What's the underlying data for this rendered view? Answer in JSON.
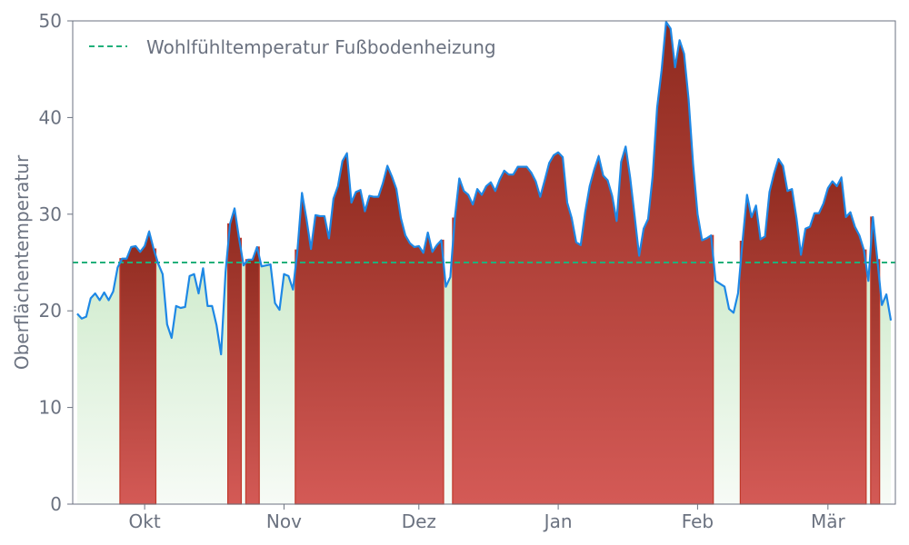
{
  "chart_data": {
    "type": "area",
    "title": "",
    "xlabel": "",
    "ylabel": "Oberflächentemperatur",
    "ylim": [
      0,
      50
    ],
    "yticks": [
      0,
      10,
      20,
      30,
      40,
      50
    ],
    "x_start": "2023-09-15",
    "x_end": "2024-03-16",
    "xticks": [
      {
        "label": "Okt",
        "date": "2023-10-01"
      },
      {
        "label": "Nov",
        "date": "2023-11-01"
      },
      {
        "label": "Dez",
        "date": "2023-12-01"
      },
      {
        "label": "Jan",
        "date": "2024-01-01"
      },
      {
        "label": "Feb",
        "date": "2024-02-01"
      },
      {
        "label": "Mär",
        "date": "2024-03-01"
      }
    ],
    "threshold": {
      "name": "Wohlfühltemperatur Fußbodenheizung",
      "value": 25
    },
    "legend_position": "top-left",
    "colors": {
      "line": "#1e88e5",
      "threshold": "#20b07a",
      "above_top": "#8e2a1e",
      "above_bottom": "#d45a56",
      "below_top": "#a8dca4",
      "below_bottom": "#f7fbf6",
      "axis": "#6b7280"
    },
    "series": [
      {
        "name": "Oberflächentemperatur",
        "points": [
          [
            "2023-09-16",
            19.7
          ],
          [
            "2023-09-17",
            19.2
          ],
          [
            "2023-09-18",
            19.4
          ],
          [
            "2023-09-19",
            21.3
          ],
          [
            "2023-09-20",
            21.8
          ],
          [
            "2023-09-21",
            21.1
          ],
          [
            "2023-09-22",
            21.9
          ],
          [
            "2023-09-23",
            21.1
          ],
          [
            "2023-09-24",
            22.0
          ],
          [
            "2023-09-25",
            24.5
          ],
          [
            "2023-09-26",
            25.4
          ],
          [
            "2023-09-27",
            25.4
          ],
          [
            "2023-09-28",
            26.6
          ],
          [
            "2023-09-29",
            26.7
          ],
          [
            "2023-09-30",
            26.1
          ],
          [
            "2023-10-01",
            26.7
          ],
          [
            "2023-10-02",
            28.2
          ],
          [
            "2023-10-03",
            26.4
          ],
          [
            "2023-10-04",
            24.9
          ],
          [
            "2023-10-05",
            23.8
          ],
          [
            "2023-10-06",
            18.6
          ],
          [
            "2023-10-07",
            17.2
          ],
          [
            "2023-10-08",
            20.5
          ],
          [
            "2023-10-09",
            20.3
          ],
          [
            "2023-10-10",
            20.4
          ],
          [
            "2023-10-11",
            23.6
          ],
          [
            "2023-10-12",
            23.8
          ],
          [
            "2023-10-13",
            21.8
          ],
          [
            "2023-10-14",
            24.4
          ],
          [
            "2023-10-15",
            20.5
          ],
          [
            "2023-10-16",
            20.5
          ],
          [
            "2023-10-17",
            18.5
          ],
          [
            "2023-10-18",
            15.5
          ],
          [
            "2023-10-19",
            24.0
          ],
          [
            "2023-10-20",
            29.0
          ],
          [
            "2023-10-21",
            30.6
          ],
          [
            "2023-10-22",
            27.5
          ],
          [
            "2023-10-23",
            24.7
          ],
          [
            "2023-10-24",
            25.3
          ],
          [
            "2023-10-25",
            25.3
          ],
          [
            "2023-10-26",
            26.6
          ],
          [
            "2023-10-27",
            24.6
          ],
          [
            "2023-10-28",
            24.7
          ],
          [
            "2023-10-29",
            24.8
          ],
          [
            "2023-10-30",
            20.8
          ],
          [
            "2023-10-31",
            20.1
          ],
          [
            "2023-11-01",
            23.8
          ],
          [
            "2023-11-02",
            23.6
          ],
          [
            "2023-11-03",
            22.2
          ],
          [
            "2023-11-04",
            26.3
          ],
          [
            "2023-11-05",
            32.2
          ],
          [
            "2023-11-06",
            29.5
          ],
          [
            "2023-11-07",
            26.4
          ],
          [
            "2023-11-08",
            29.9
          ],
          [
            "2023-11-09",
            29.8
          ],
          [
            "2023-11-10",
            29.8
          ],
          [
            "2023-11-11",
            27.5
          ],
          [
            "2023-11-12",
            31.6
          ],
          [
            "2023-11-13",
            32.9
          ],
          [
            "2023-11-14",
            35.5
          ],
          [
            "2023-11-15",
            36.3
          ],
          [
            "2023-11-16",
            31.2
          ],
          [
            "2023-11-17",
            32.3
          ],
          [
            "2023-11-18",
            32.5
          ],
          [
            "2023-11-19",
            30.3
          ],
          [
            "2023-11-20",
            31.9
          ],
          [
            "2023-11-21",
            31.8
          ],
          [
            "2023-11-22",
            31.8
          ],
          [
            "2023-11-23",
            33.2
          ],
          [
            "2023-11-24",
            35.0
          ],
          [
            "2023-11-25",
            33.9
          ],
          [
            "2023-11-26",
            32.6
          ],
          [
            "2023-11-27",
            29.6
          ],
          [
            "2023-11-28",
            27.8
          ],
          [
            "2023-11-29",
            27.0
          ],
          [
            "2023-11-30",
            26.6
          ],
          [
            "2023-12-01",
            26.7
          ],
          [
            "2023-12-02",
            26.0
          ],
          [
            "2023-12-03",
            28.1
          ],
          [
            "2023-12-04",
            26.1
          ],
          [
            "2023-12-05",
            26.8
          ],
          [
            "2023-12-06",
            27.3
          ],
          [
            "2023-12-07",
            22.5
          ],
          [
            "2023-12-08",
            23.5
          ],
          [
            "2023-12-09",
            29.6
          ],
          [
            "2023-12-10",
            33.7
          ],
          [
            "2023-12-11",
            32.4
          ],
          [
            "2023-12-12",
            32.0
          ],
          [
            "2023-12-13",
            31.0
          ],
          [
            "2023-12-14",
            32.6
          ],
          [
            "2023-12-15",
            32.0
          ],
          [
            "2023-12-16",
            32.9
          ],
          [
            "2023-12-17",
            33.3
          ],
          [
            "2023-12-18",
            32.4
          ],
          [
            "2023-12-19",
            33.6
          ],
          [
            "2023-12-20",
            34.5
          ],
          [
            "2023-12-21",
            34.1
          ],
          [
            "2023-12-22",
            34.1
          ],
          [
            "2023-12-23",
            34.9
          ],
          [
            "2023-12-24",
            34.9
          ],
          [
            "2023-12-25",
            34.9
          ],
          [
            "2023-12-26",
            34.3
          ],
          [
            "2023-12-27",
            33.4
          ],
          [
            "2023-12-28",
            31.8
          ],
          [
            "2023-12-29",
            33.5
          ],
          [
            "2023-12-30",
            35.3
          ],
          [
            "2023-12-31",
            36.1
          ],
          [
            "2024-01-01",
            36.4
          ],
          [
            "2024-01-02",
            35.9
          ],
          [
            "2024-01-03",
            31.2
          ],
          [
            "2024-01-04",
            29.6
          ],
          [
            "2024-01-05",
            27.1
          ],
          [
            "2024-01-06",
            26.8
          ],
          [
            "2024-01-07",
            30.2
          ],
          [
            "2024-01-08",
            32.9
          ],
          [
            "2024-01-09",
            34.6
          ],
          [
            "2024-01-10",
            36.0
          ],
          [
            "2024-01-11",
            34.0
          ],
          [
            "2024-01-12",
            33.5
          ],
          [
            "2024-01-13",
            31.9
          ],
          [
            "2024-01-14",
            29.3
          ],
          [
            "2024-01-15",
            35.4
          ],
          [
            "2024-01-16",
            37.0
          ],
          [
            "2024-01-17",
            33.8
          ],
          [
            "2024-01-18",
            29.8
          ],
          [
            "2024-01-19",
            25.7
          ],
          [
            "2024-01-20",
            28.5
          ],
          [
            "2024-01-21",
            29.5
          ],
          [
            "2024-01-22",
            33.9
          ],
          [
            "2024-01-23",
            41.0
          ],
          [
            "2024-01-24",
            44.9
          ],
          [
            "2024-01-25",
            49.9
          ],
          [
            "2024-01-26",
            49.2
          ],
          [
            "2024-01-27",
            45.2
          ],
          [
            "2024-01-28",
            48.0
          ],
          [
            "2024-01-29",
            46.6
          ],
          [
            "2024-01-30",
            41.9
          ],
          [
            "2024-01-31",
            35.2
          ],
          [
            "2024-02-01",
            30.0
          ],
          [
            "2024-02-02",
            27.3
          ],
          [
            "2024-02-03",
            27.5
          ],
          [
            "2024-02-04",
            27.8
          ],
          [
            "2024-02-05",
            23.1
          ],
          [
            "2024-02-06",
            22.8
          ],
          [
            "2024-02-07",
            22.5
          ],
          [
            "2024-02-08",
            20.2
          ],
          [
            "2024-02-09",
            19.8
          ],
          [
            "2024-02-10",
            21.8
          ],
          [
            "2024-02-11",
            27.2
          ],
          [
            "2024-02-12",
            32.0
          ],
          [
            "2024-02-13",
            29.7
          ],
          [
            "2024-02-14",
            30.9
          ],
          [
            "2024-02-15",
            27.4
          ],
          [
            "2024-02-16",
            27.7
          ],
          [
            "2024-02-17",
            32.3
          ],
          [
            "2024-02-18",
            34.2
          ],
          [
            "2024-02-19",
            35.7
          ],
          [
            "2024-02-20",
            35.0
          ],
          [
            "2024-02-21",
            32.4
          ],
          [
            "2024-02-22",
            32.6
          ],
          [
            "2024-02-23",
            29.6
          ],
          [
            "2024-02-24",
            25.8
          ],
          [
            "2024-02-25",
            28.5
          ],
          [
            "2024-02-26",
            28.7
          ],
          [
            "2024-02-27",
            30.1
          ],
          [
            "2024-02-28",
            30.1
          ],
          [
            "2024-02-29",
            31.1
          ],
          [
            "2024-03-01",
            32.7
          ],
          [
            "2024-03-02",
            33.4
          ],
          [
            "2024-03-03",
            32.9
          ],
          [
            "2024-03-04",
            33.8
          ],
          [
            "2024-03-05",
            29.7
          ],
          [
            "2024-03-06",
            30.2
          ],
          [
            "2024-03-07",
            28.7
          ],
          [
            "2024-03-08",
            27.8
          ],
          [
            "2024-03-09",
            26.3
          ],
          [
            "2024-03-10",
            23.1
          ],
          [
            "2024-03-11",
            29.7
          ],
          [
            "2024-03-12",
            25.3
          ],
          [
            "2024-03-13",
            20.6
          ],
          [
            "2024-03-14",
            21.7
          ],
          [
            "2024-03-15",
            19.0
          ]
        ]
      }
    ]
  }
}
